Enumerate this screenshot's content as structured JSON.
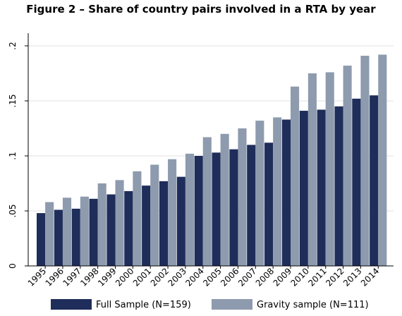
{
  "chart_data": {
    "type": "bar",
    "title": "Figure 2 – Share of country pairs involved in a RTA by year",
    "xlabel": "",
    "ylabel": "",
    "categories": [
      "1995",
      "1996",
      "1997",
      "1998",
      "1999",
      "2000",
      "2001",
      "2002",
      "2003",
      "2004",
      "2005",
      "2006",
      "2007",
      "2008",
      "2009",
      "2010",
      "2011",
      "2012",
      "2013",
      "2014"
    ],
    "series": [
      {
        "name": "Full Sample (N=159)",
        "color": "#1f2d5a",
        "values": [
          0.048,
          0.051,
          0.052,
          0.061,
          0.065,
          0.068,
          0.073,
          0.077,
          0.081,
          0.1,
          0.103,
          0.106,
          0.11,
          0.112,
          0.133,
          0.141,
          0.142,
          0.145,
          0.152,
          0.155
        ]
      },
      {
        "name": "Gravity sample (N=111)",
        "color": "#8e9bae",
        "values": [
          0.058,
          0.062,
          0.063,
          0.075,
          0.078,
          0.086,
          0.092,
          0.097,
          0.102,
          0.117,
          0.12,
          0.125,
          0.132,
          0.135,
          0.163,
          0.175,
          0.176,
          0.182,
          0.191,
          0.192
        ]
      }
    ],
    "ylim": [
      0,
      0.2
    ],
    "yticks": [
      0,
      0.05,
      0.1,
      0.15,
      0.2
    ],
    "ytick_labels": [
      "0",
      ".05",
      ".1",
      ".15",
      ".2"
    ],
    "grid": true,
    "legend_position": "bottom",
    "colors": {
      "plot_background": "#ffffff",
      "grid": "#e0e0e0",
      "axis": "#000000"
    }
  }
}
